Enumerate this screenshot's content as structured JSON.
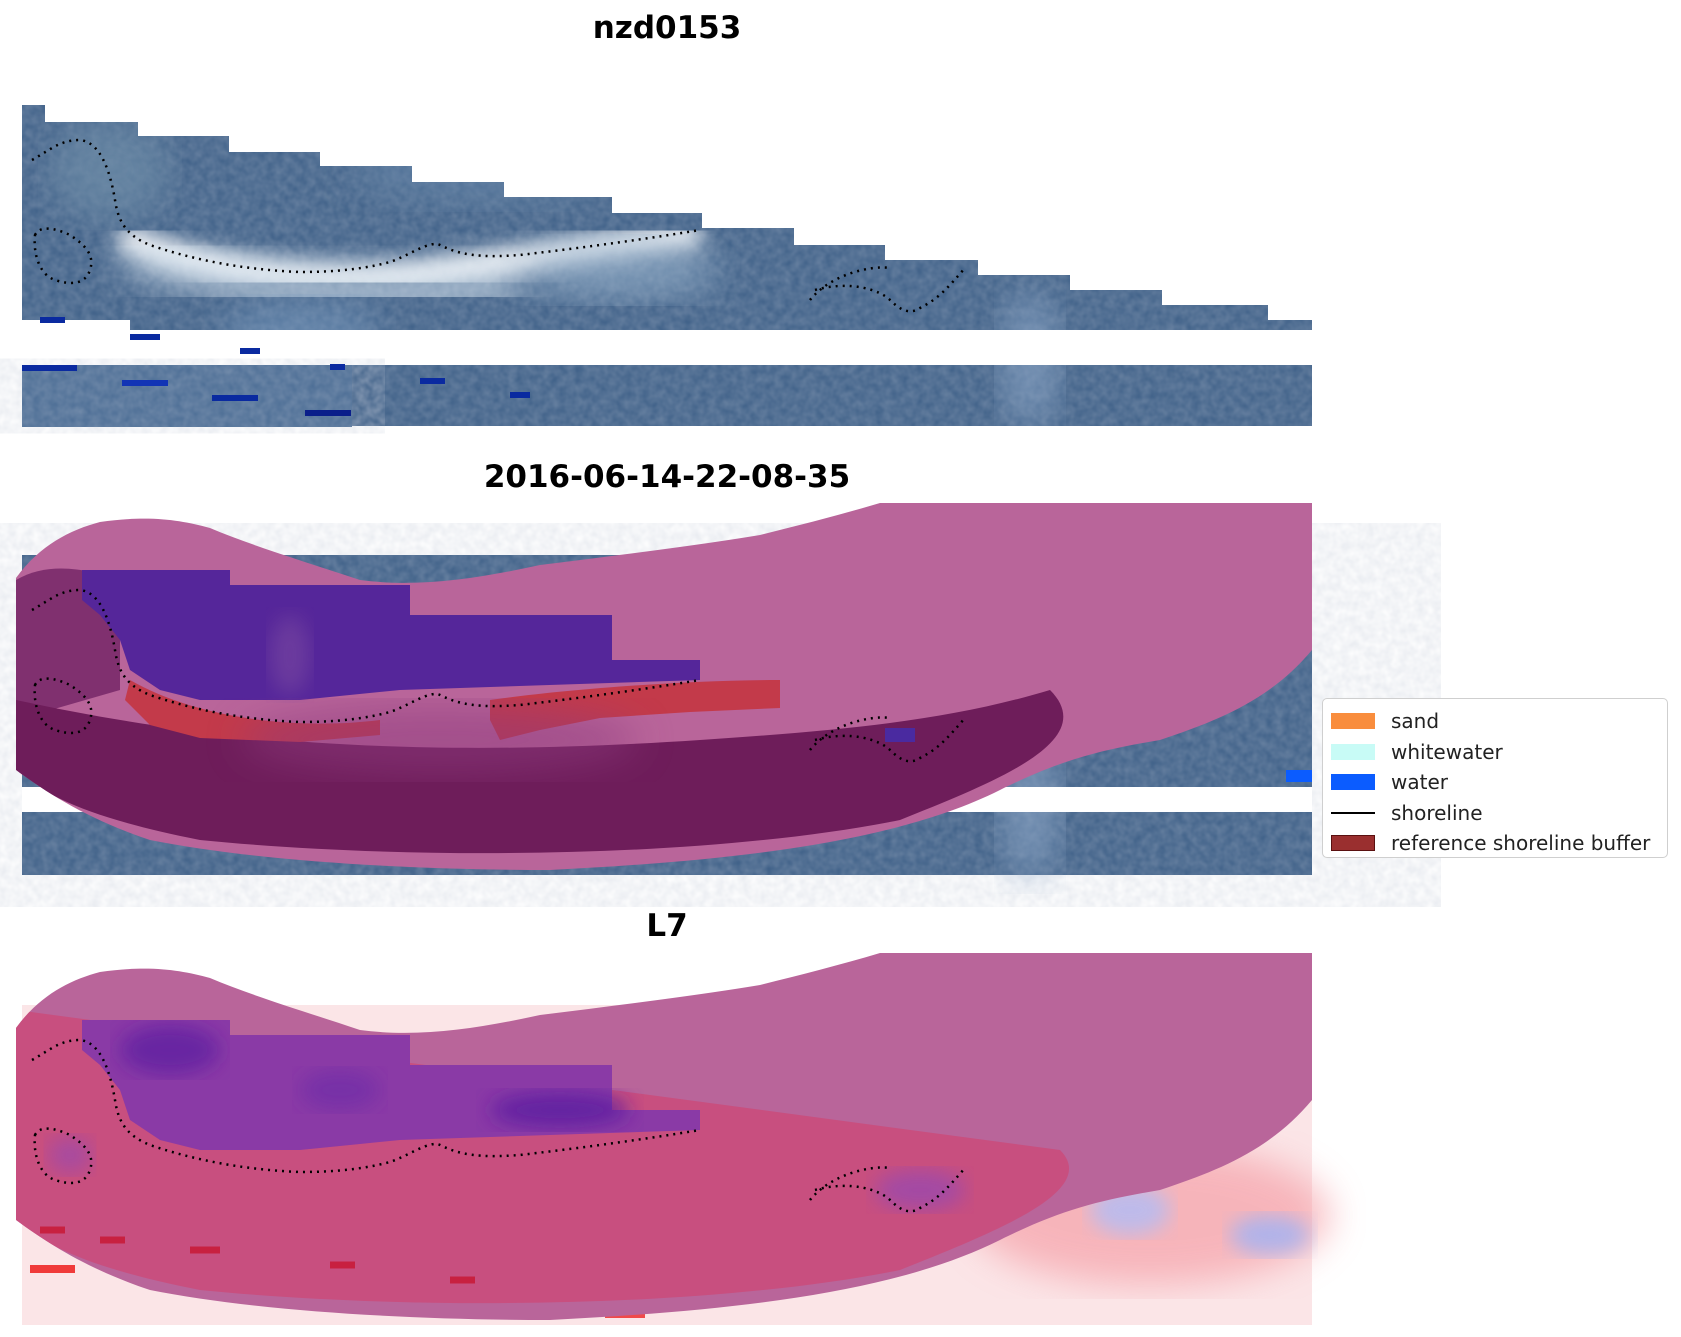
{
  "panels": [
    {
      "title": "nzd0153"
    },
    {
      "title": "2016-06-14-22-08-35"
    },
    {
      "title": "L7"
    }
  ],
  "legend": {
    "items": [
      {
        "label": "sand",
        "color": "#f98d3d",
        "kind": "patch"
      },
      {
        "label": "whitewater",
        "color": "#c8fbf6",
        "kind": "patch"
      },
      {
        "label": "water",
        "color": "#0b5cff",
        "kind": "patch"
      },
      {
        "label": "shoreline",
        "color": "#000000",
        "kind": "line"
      },
      {
        "label": "reference shoreline buffer",
        "color": "#9a2f2f",
        "kind": "patch"
      }
    ]
  },
  "colors": {
    "buffer_overlay": "#b9659a",
    "imagery_blue": "#3c5f86",
    "classified_water": "#55269a",
    "classified_sand": "#c33a4a",
    "ndwi_low": "#f04a4a",
    "ndwi_high": "#5a1aa0"
  }
}
